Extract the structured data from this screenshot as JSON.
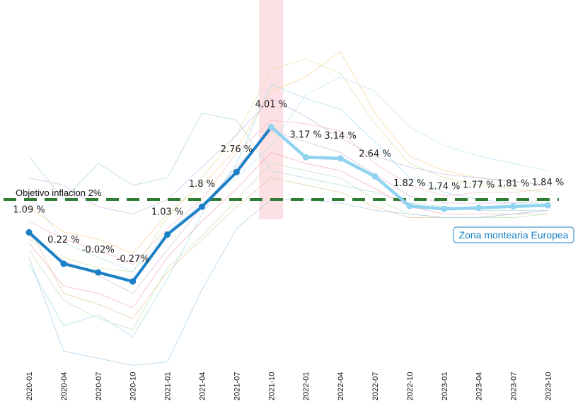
{
  "chart_data": {
    "type": "line",
    "title": "",
    "xlabel": "",
    "ylabel": "",
    "categories": [
      "2020-01",
      "2020-04",
      "2020-07",
      "2020-10",
      "2021-01",
      "2021-04",
      "2021-07",
      "2021-10",
      "2022-01",
      "2022-04",
      "2022-07",
      "2022-10",
      "2023-01",
      "2023-04",
      "2023-07",
      "2023-10"
    ],
    "series": [
      {
        "name": "Zona montearia Europea",
        "values": [
          1.09,
          0.22,
          -0.02,
          -0.27,
          1.03,
          1.8,
          2.76,
          4.01,
          3.17,
          3.14,
          2.64,
          1.82,
          1.74,
          1.77,
          1.81,
          1.84
        ],
        "value_labels": [
          "1.09 %",
          "0.22 %",
          "-0.02%",
          "-0.27%",
          "1.03 %",
          "1.8  %",
          "2.76 %",
          "4.01 %",
          "3.17 %",
          "3.14 %",
          "2.64 %",
          "1.82 %",
          "1.74 %",
          "1.77 %",
          "1.81 %",
          "1.84 %"
        ],
        "color_actual": "#1a7fc4",
        "color_forecast": "#8fd3f0",
        "forecast_from_index": 7
      }
    ],
    "target": {
      "label": "Objetivo inflacion 2%",
      "value": 2,
      "color": "#2e7d32"
    },
    "highlight": {
      "category": "2021-10",
      "color": "#fde0e4"
    },
    "ylim": [
      -2.7,
      6
    ],
    "grid": false,
    "legend": {
      "label": "Zona montearia Europea",
      "placement": "right",
      "color": "#1a7fc4"
    },
    "background_series": [
      {
        "color": "#9fd9ee",
        "values": [
          0.2,
          -1.5,
          -1.2,
          -1.8,
          -0.2,
          1.6,
          3.0,
          5.2,
          4.8,
          4.5,
          3.6,
          2.6,
          2.2,
          2.0,
          1.9,
          1.9
        ]
      },
      {
        "color": "#f5b7c5",
        "values": [
          1.4,
          0.9,
          0.6,
          0.2,
          1.2,
          2.0,
          3.3,
          4.2,
          4.1,
          3.9,
          3.0,
          2.4,
          2.1,
          2.2,
          2.2,
          2.3
        ]
      },
      {
        "color": "#cfe3a6",
        "values": [
          0.9,
          0.4,
          0.1,
          0.0,
          1.5,
          2.6,
          3.8,
          5.6,
          5.9,
          5.5,
          4.1,
          3.0,
          2.6,
          2.4,
          2.3,
          2.2
        ]
      },
      {
        "color": "#a8d8d0",
        "values": [
          3.2,
          2.0,
          3.0,
          2.4,
          2.6,
          4.4,
          4.2,
          2.8,
          2.6,
          2.4,
          2.2,
          1.9,
          1.8,
          1.7,
          1.7,
          1.7
        ]
      },
      {
        "color": "#f7d08a",
        "values": [
          1.8,
          1.1,
          0.9,
          0.5,
          1.6,
          2.4,
          3.4,
          5.0,
          5.4,
          6.1,
          4.4,
          3.2,
          2.8,
          2.6,
          2.5,
          2.4
        ]
      },
      {
        "color": "#c6b9e4",
        "values": [
          2.6,
          2.4,
          1.8,
          1.6,
          2.0,
          2.9,
          3.8,
          4.8,
          4.3,
          3.7,
          3.2,
          2.9,
          2.7,
          2.6,
          2.5,
          2.4
        ]
      },
      {
        "color": "#b9e0f6",
        "values": [
          2.2,
          0.8,
          0.4,
          0.0,
          1.1,
          1.9,
          2.6,
          3.5,
          4.9,
          5.4,
          5.0,
          4.0,
          3.5,
          3.2,
          3.0,
          2.8
        ]
      },
      {
        "color": "#f2a7b8",
        "values": [
          0.8,
          -0.4,
          -0.6,
          -1.0,
          0.4,
          1.4,
          2.3,
          3.3,
          3.0,
          2.8,
          2.3,
          1.8,
          1.6,
          1.6,
          1.6,
          1.7
        ]
      },
      {
        "color": "#b8e3b0",
        "values": [
          0.6,
          -0.8,
          -1.3,
          -1.6,
          0.1,
          1.0,
          2.0,
          3.0,
          2.8,
          2.6,
          2.0,
          1.6,
          1.5,
          1.5,
          1.5,
          1.6
        ]
      },
      {
        "color": "#e6c6a0",
        "values": [
          1.2,
          -0.6,
          -0.9,
          -1.3,
          0.0,
          0.9,
          1.8,
          2.6,
          2.4,
          2.2,
          1.8,
          1.5,
          1.5,
          1.5,
          1.6,
          1.6
        ]
      },
      {
        "color": "#a3cbe8",
        "values": [
          0.4,
          -2.2,
          -2.4,
          -2.6,
          -2.5,
          -0.5,
          1.2,
          2.0,
          2.0,
          1.9,
          1.7,
          1.6,
          1.5,
          1.5,
          1.6,
          1.7
        ]
      },
      {
        "color": "#d3b8d8",
        "values": [
          1.0,
          0.3,
          -0.1,
          -0.6,
          0.6,
          1.8,
          2.9,
          3.9,
          3.6,
          3.3,
          2.7,
          2.1,
          1.9,
          1.9,
          1.9,
          2.0
        ]
      }
    ]
  }
}
